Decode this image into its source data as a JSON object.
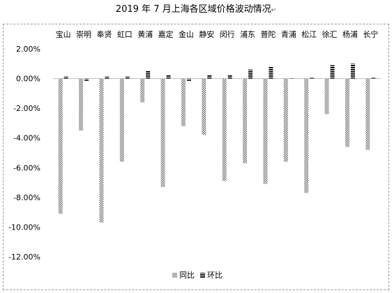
{
  "chart_data": {
    "type": "bar",
    "title": "2019 年 7 月上海各区域价格波动情况",
    "title_suffix": "↵",
    "categories": [
      "宝山",
      "崇明",
      "奉贤",
      "虹口",
      "黄浦",
      "嘉定",
      "金山",
      "静安",
      "闵行",
      "浦东",
      "普陀",
      "青浦",
      "松江",
      "徐汇",
      "杨浦",
      "长宁"
    ],
    "series": [
      {
        "name": "同比",
        "values": [
          -9.1,
          -3.5,
          -9.7,
          -5.6,
          -1.6,
          -7.3,
          -3.2,
          -3.8,
          -6.9,
          -5.7,
          -7.1,
          -5.6,
          -7.7,
          -2.4,
          -4.6,
          -4.8
        ]
      },
      {
        "name": "环比",
        "values": [
          0.15,
          -0.15,
          0.15,
          0.15,
          0.5,
          0.25,
          -0.15,
          0.25,
          0.25,
          0.6,
          0.8,
          0.0,
          0.05,
          0.9,
          1.0,
          0.05
        ]
      }
    ],
    "ylim": [
      -12,
      2
    ],
    "yticks": [
      2,
      0,
      -2,
      -4,
      -6,
      -8,
      -10,
      -12
    ],
    "ytick_labels": [
      "2.00%",
      "0.00%",
      "-2.00%",
      "-4.00%",
      "-6.00%",
      "-8.00%",
      "-10.00%",
      "-12.00%"
    ],
    "legend_position": "bottom",
    "grid": false,
    "colors": {
      "series1": "#9a9a9a",
      "series2": "#1a1a1a",
      "axis": "#bfbfbf"
    }
  }
}
